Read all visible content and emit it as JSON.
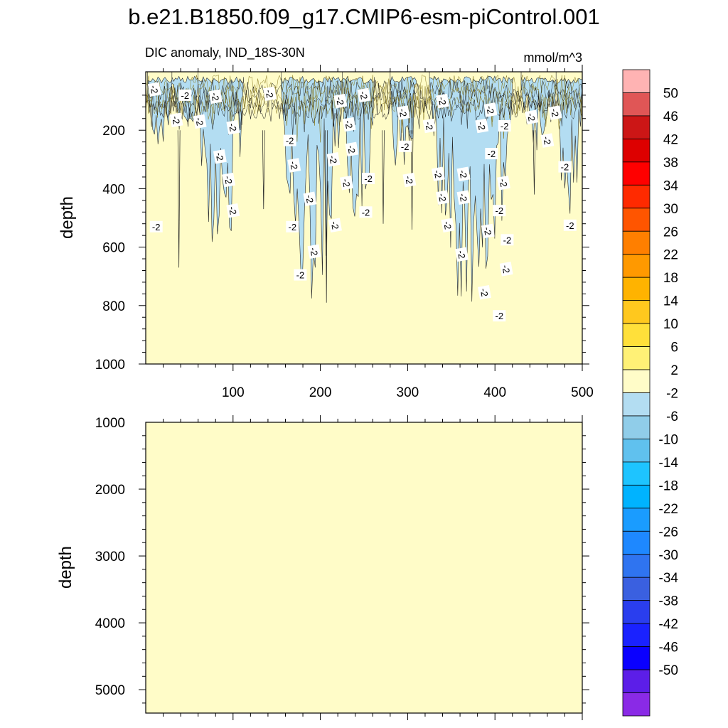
{
  "figure": {
    "title": "b.e21.B1850.f09_g17.CMIP6-esm-piControl.001",
    "subtitle_left": "DIC anomaly, IND_18S-30N",
    "subtitle_right": "mmol/m^3"
  },
  "colorbar": {
    "labels": [
      "50",
      "46",
      "42",
      "38",
      "34",
      "30",
      "26",
      "22",
      "18",
      "14",
      "10",
      "6",
      "2",
      "-2",
      "-6",
      "-10",
      "-14",
      "-18",
      "-22",
      "-26",
      "-30",
      "-34",
      "-38",
      "-42",
      "-46",
      "-50"
    ],
    "colors": [
      "#ffb3b3",
      "#e05656",
      "#cc1616",
      "#dd0000",
      "#ff0000",
      "#ff2a00",
      "#ff5500",
      "#ff7f00",
      "#ff9900",
      "#ffb300",
      "#ffc81e",
      "#ffe03a",
      "#fff176",
      "#fffcc8",
      "#b3ddf2",
      "#90cde9",
      "#60c1ee",
      "#1ec4ff",
      "#00b3ff",
      "#1a9cff",
      "#1e88ff",
      "#2f74f0",
      "#3a60e0",
      "#2a3eee",
      "#1a22ff",
      "#0a00ff",
      "#5c1ee8",
      "#8a2ae6"
    ]
  },
  "chart_data": [
    {
      "type": "contour",
      "panel": "upper",
      "ylabel": "depth",
      "xlim": [
        0,
        500
      ],
      "ylim": [
        1000,
        0
      ],
      "x_ticks": [
        "100",
        "200",
        "300",
        "400",
        "500"
      ],
      "y_ticks": [
        "200",
        "400",
        "600",
        "800",
        "1000"
      ],
      "background_level_color": "#fffcc8",
      "anomaly_level_color": "#b3ddf2",
      "contour_labels": [
        {
          "x": 10,
          "depth": 60,
          "text": "-2"
        },
        {
          "x": 45,
          "depth": 80,
          "text": "-2"
        },
        {
          "x": 62,
          "depth": 170,
          "text": "-2"
        },
        {
          "x": 35,
          "depth": 165,
          "text": "-2"
        },
        {
          "x": 80,
          "depth": 85,
          "text": "-2"
        },
        {
          "x": 100,
          "depth": 190,
          "text": "-2"
        },
        {
          "x": 85,
          "depth": 290,
          "text": "-2"
        },
        {
          "x": 95,
          "depth": 370,
          "text": "-2"
        },
        {
          "x": 100,
          "depth": 475,
          "text": "-2"
        },
        {
          "x": 12,
          "depth": 530,
          "text": "-2"
        },
        {
          "x": 142,
          "depth": 75,
          "text": "-2"
        },
        {
          "x": 165,
          "depth": 235,
          "text": "-2"
        },
        {
          "x": 170,
          "depth": 320,
          "text": "-2"
        },
        {
          "x": 168,
          "depth": 530,
          "text": "-2"
        },
        {
          "x": 188,
          "depth": 435,
          "text": "-2"
        },
        {
          "x": 193,
          "depth": 615,
          "text": "-2"
        },
        {
          "x": 177,
          "depth": 695,
          "text": "-2"
        },
        {
          "x": 215,
          "depth": 300,
          "text": "-2"
        },
        {
          "x": 217,
          "depth": 525,
          "text": "-2"
        },
        {
          "x": 223,
          "depth": 100,
          "text": "-2"
        },
        {
          "x": 233,
          "depth": 180,
          "text": "-2"
        },
        {
          "x": 236,
          "depth": 265,
          "text": "-2"
        },
        {
          "x": 230,
          "depth": 380,
          "text": "-2"
        },
        {
          "x": 250,
          "depth": 80,
          "text": "-2"
        },
        {
          "x": 255,
          "depth": 365,
          "text": "-2"
        },
        {
          "x": 252,
          "depth": 480,
          "text": "-2"
        },
        {
          "x": 295,
          "depth": 140,
          "text": "-2"
        },
        {
          "x": 297,
          "depth": 255,
          "text": "-2"
        },
        {
          "x": 302,
          "depth": 370,
          "text": "-2"
        },
        {
          "x": 325,
          "depth": 185,
          "text": "-2"
        },
        {
          "x": 340,
          "depth": 100,
          "text": "-2"
        },
        {
          "x": 335,
          "depth": 350,
          "text": "-2"
        },
        {
          "x": 340,
          "depth": 430,
          "text": "-2"
        },
        {
          "x": 346,
          "depth": 525,
          "text": "-2"
        },
        {
          "x": 364,
          "depth": 350,
          "text": "-2"
        },
        {
          "x": 364,
          "depth": 430,
          "text": "-2"
        },
        {
          "x": 362,
          "depth": 625,
          "text": "-2"
        },
        {
          "x": 385,
          "depth": 185,
          "text": "-2"
        },
        {
          "x": 395,
          "depth": 130,
          "text": "-2"
        },
        {
          "x": 396,
          "depth": 280,
          "text": "-2"
        },
        {
          "x": 405,
          "depth": 475,
          "text": "-2"
        },
        {
          "x": 392,
          "depth": 545,
          "text": "-2"
        },
        {
          "x": 411,
          "depth": 185,
          "text": "-2"
        },
        {
          "x": 410,
          "depth": 380,
          "text": "-2"
        },
        {
          "x": 414,
          "depth": 575,
          "text": "-2"
        },
        {
          "x": 413,
          "depth": 675,
          "text": "-2"
        },
        {
          "x": 388,
          "depth": 755,
          "text": "-2"
        },
        {
          "x": 405,
          "depth": 835,
          "text": "-2"
        },
        {
          "x": 442,
          "depth": 155,
          "text": "-2"
        },
        {
          "x": 469,
          "depth": 140,
          "text": "-2"
        },
        {
          "x": 460,
          "depth": 235,
          "text": "-2"
        },
        {
          "x": 480,
          "depth": 325,
          "text": "-2"
        },
        {
          "x": 486,
          "depth": 525,
          "text": "-2"
        }
      ],
      "anomaly_regions": [
        {
          "x_start": 2,
          "x_end": 30,
          "max_depth": 270
        },
        {
          "x_start": 30,
          "x_end": 60,
          "max_depth": 220
        },
        {
          "x_start": 60,
          "x_end": 112,
          "max_depth": 720
        },
        {
          "x_start": 155,
          "x_end": 225,
          "max_depth": 780
        },
        {
          "x_start": 225,
          "x_end": 262,
          "max_depth": 520
        },
        {
          "x_start": 280,
          "x_end": 310,
          "max_depth": 420
        },
        {
          "x_start": 325,
          "x_end": 420,
          "max_depth": 840
        },
        {
          "x_start": 430,
          "x_end": 470,
          "max_depth": 270
        },
        {
          "x_start": 470,
          "x_end": 500,
          "max_depth": 520
        }
      ]
    },
    {
      "type": "contour",
      "panel": "lower",
      "ylabel": "depth",
      "xlim": [
        0,
        500
      ],
      "ylim": [
        5350,
        1000
      ],
      "y_ticks": [
        "1000",
        "2000",
        "3000",
        "4000",
        "5000"
      ],
      "background_level_color": "#fffcc8"
    }
  ]
}
